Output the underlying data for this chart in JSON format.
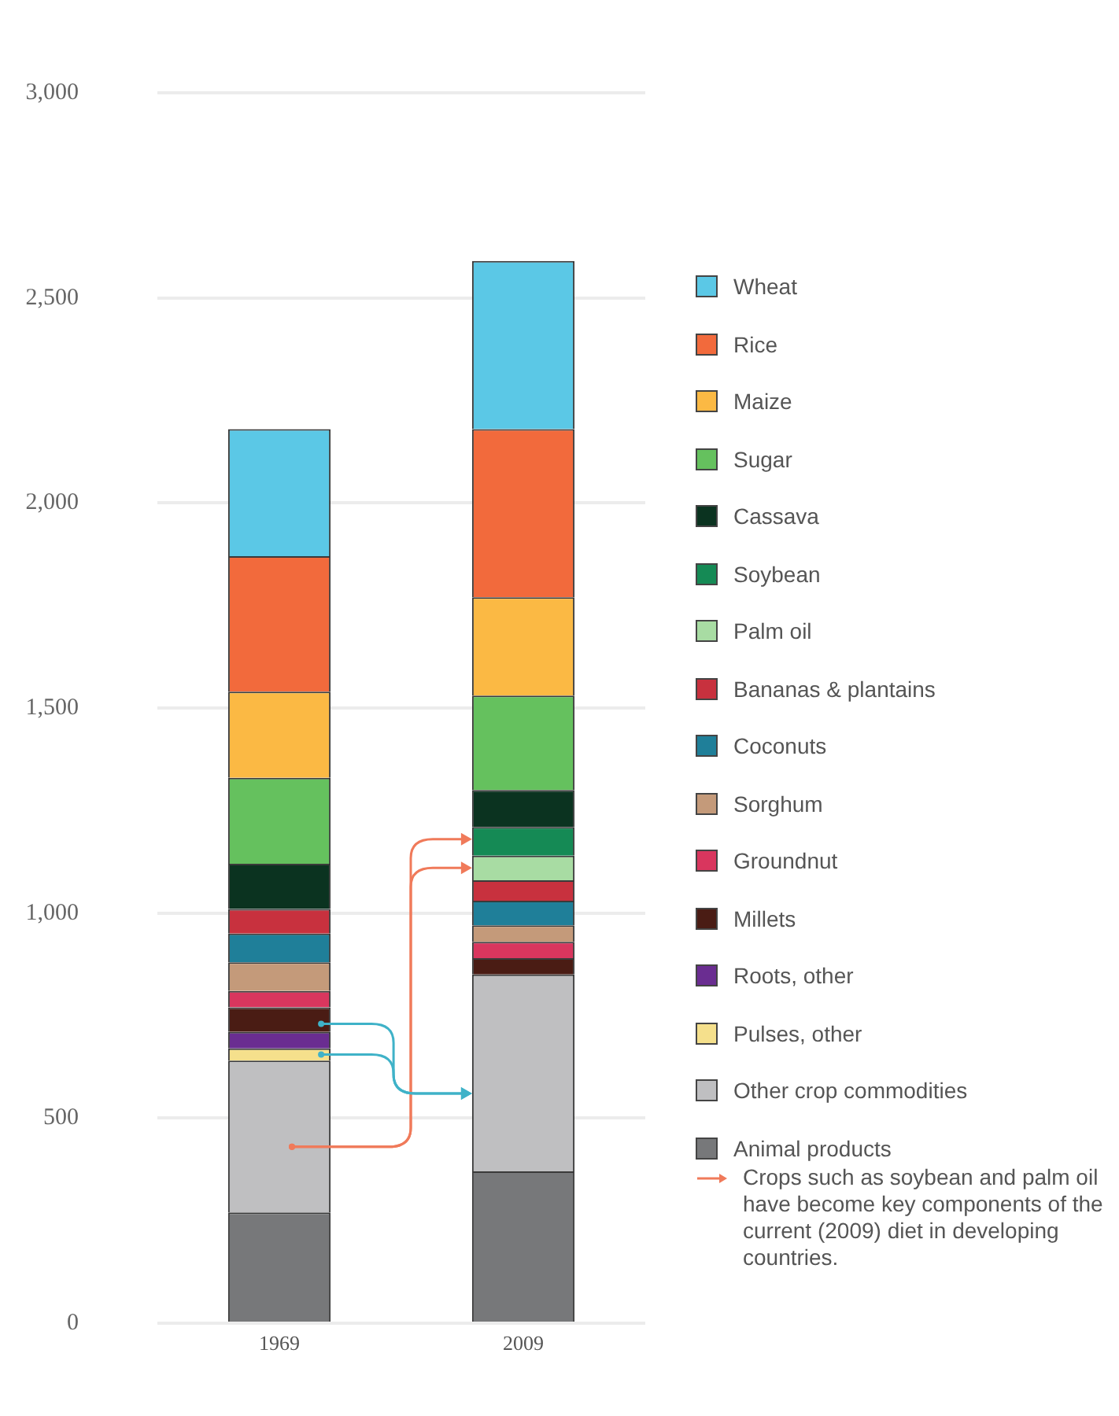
{
  "chart_data": {
    "type": "bar",
    "stacked": true,
    "categories": [
      "1969",
      "2009"
    ],
    "series": [
      {
        "name": "Animal products",
        "color": "#77787a",
        "values": [
          270,
          370
        ]
      },
      {
        "name": "Other crop commodities",
        "color": "#bfbfc1",
        "values": [
          370,
          480
        ]
      },
      {
        "name": "Pulses, other",
        "color": "#f5e08c",
        "values": [
          30,
          null
        ]
      },
      {
        "name": "Roots, other",
        "color": "#6a2d91",
        "values": [
          40,
          null
        ]
      },
      {
        "name": "Millets",
        "color": "#4a1c14",
        "values": [
          60,
          40
        ]
      },
      {
        "name": "Groundnut",
        "color": "#d9365e",
        "values": [
          40,
          40
        ]
      },
      {
        "name": "Sorghum",
        "color": "#c49a7a",
        "values": [
          70,
          40
        ]
      },
      {
        "name": "Coconuts",
        "color": "#1f7f99",
        "values": [
          70,
          60
        ]
      },
      {
        "name": "Bananas & plantains",
        "color": "#c8313e",
        "values": [
          60,
          50
        ]
      },
      {
        "name": "Palm oil",
        "color": "#a8dca3",
        "values": [
          null,
          60
        ]
      },
      {
        "name": "Soybean",
        "color": "#158a55",
        "values": [
          null,
          70
        ]
      },
      {
        "name": "Cassava",
        "color": "#0b3320",
        "values": [
          110,
          90
        ]
      },
      {
        "name": "Sugar",
        "color": "#65c15e",
        "values": [
          210,
          230
        ]
      },
      {
        "name": "Maize",
        "color": "#fbb944",
        "values": [
          210,
          240
        ]
      },
      {
        "name": "Rice",
        "color": "#f26a3c",
        "values": [
          330,
          410
        ]
      },
      {
        "name": "Wheat",
        "color": "#5bc8e6",
        "values": [
          310,
          410
        ]
      }
    ],
    "ylim": [
      0,
      3000
    ],
    "yticks": [
      0,
      500,
      {
        "value": 1000,
        "label": "1,000"
      },
      {
        "value": 1500,
        "label": "1,500"
      },
      {
        "value": 2000,
        "label": "2,000"
      },
      {
        "value": 2500,
        "label": "2,500"
      },
      {
        "value": 3000,
        "label": "3,000"
      }
    ],
    "grid": "y",
    "legend": "right",
    "annotations": [
      "Crops such as soybean and palm oil have become key components of the current (2009) diet in developing countries."
    ]
  }
}
